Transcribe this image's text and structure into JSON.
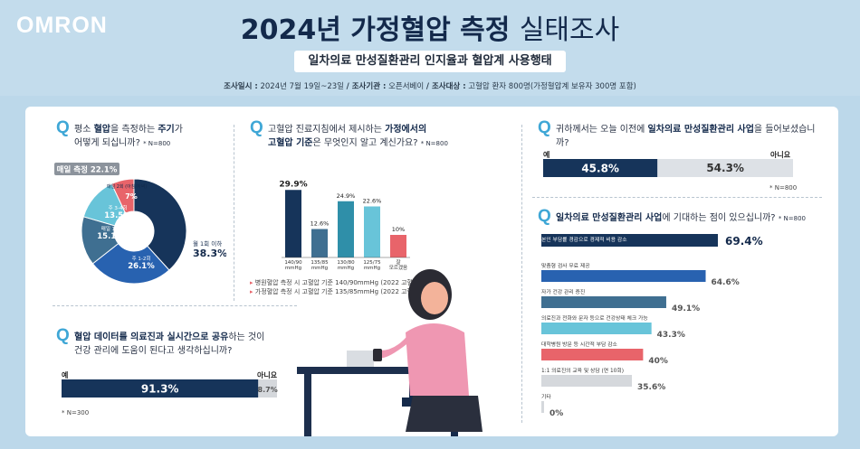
{
  "brand": "OMRON",
  "title": {
    "part1": "2024년 가정혈압 측정",
    "part2": "실태조사"
  },
  "subtitle": "일차의료 만성질환관리 인지율과 혈압계 사용행태",
  "meta": {
    "date_label": "조사일시 :",
    "date": "2024년 7월 19일~23일",
    "org_label": "/ 조사기관 :",
    "org": "오픈서베이",
    "target_label": "/ 조사대상 :",
    "target": "고혈압 환자 800명(가정혈압계 보유자 300명 포함)"
  },
  "q1": {
    "q": "Q",
    "text_a": "평소 ",
    "text_b": "혈압",
    "text_c": "을 측정하는 ",
    "text_d": "주기",
    "text_e": "가",
    "line2": "어떻게 되십니까?",
    "n": "* N=800"
  },
  "q2": {
    "q": "Q",
    "line1a": "고혈압 진료지침에서 제시하는 ",
    "line1b": "가정에서의",
    "line2a": "고혈압 기준",
    "line2b": "은 무엇인지 알고 계신가요?",
    "n": "* N=800",
    "legend1": "병원혈압 측정 시 고혈압 기준 140/90mmHg (2022 고혈압 진료지침)",
    "legend2": "가정혈압 측정 시 고혈압 기준 135/85mmHg (2022 고혈압 진료지침)"
  },
  "q3": {
    "q": "Q",
    "line1a": "혈압 데이터를 의료진과 실시간으로 공유",
    "line1b": "하는 것이",
    "line2": "건강 관리에 도움이 된다고 생각하십니까?",
    "yes": "예",
    "no": "아니요",
    "yes_value": "91.3%",
    "no_value": "8.7%",
    "n": "* N=300"
  },
  "q4": {
    "q": "Q",
    "line1a": "귀하께서는 오늘 이전에 ",
    "line1b": "일차의료 만성질환관리 사업",
    "line1c": "을 들어보셨습니까?",
    "yes": "예",
    "no": "아니요",
    "yes_value": "45.8%",
    "no_value": "54.3%",
    "n": "* N=800"
  },
  "q5": {
    "q": "Q",
    "line1a": "일차의료 만성질환관리 사업",
    "line1b": "에 기대하는 점이 있으십니까?",
    "n": "* N=800"
  },
  "colors": {
    "navy": "#16345a",
    "blue": "#2862b0",
    "mid": "#3f6f91",
    "teal": "#2f8fa9",
    "cyan": "#68c4d9",
    "coral": "#e8646a",
    "grey": "#d5d8dc",
    "light": "#dde1e6"
  },
  "chart_data": [
    {
      "type": "pie",
      "title": "평소 혈압을 측정하는 주기",
      "slices": [
        {
          "label": "월 1회 이하",
          "value": 38.3,
          "color": "#16345a"
        },
        {
          "label": "주 1-2회",
          "value": 26.1,
          "color": "#2862b0"
        },
        {
          "label": "매일 1회",
          "value": 15.1,
          "color": "#3f6f91"
        },
        {
          "label": "주 3-4회",
          "value": 13.5,
          "color": "#68c4d9"
        },
        {
          "label": "매일 2회 (아침/저녁)",
          "value": 7.0,
          "color": "#e8646a"
        }
      ],
      "callout": "매일 측정 22.1%",
      "display": [
        "38.3%",
        "26.1%",
        "15.1%",
        "13.5%",
        "7%"
      ]
    },
    {
      "type": "bar",
      "title": "가정에서의 고혈압 기준",
      "categories": [
        "140/90 mmHg",
        "135/85 mmHg",
        "130/80 mmHg",
        "125/75 mmHg",
        "잘 모르겠음"
      ],
      "values": [
        29.9,
        12.6,
        24.9,
        22.6,
        10
      ],
      "labels": [
        "29.9%",
        "12.6%",
        "24.9%",
        "22.6%",
        "10%"
      ],
      "colors": [
        "#16345a",
        "#3f6f91",
        "#2f8fa9",
        "#68c4d9",
        "#e8646a"
      ]
    },
    {
      "type": "bar",
      "title": "혈압 데이터 의료진 실시간 공유 도움 여부",
      "categories": [
        "예",
        "아니요"
      ],
      "values": [
        91.3,
        8.7
      ]
    },
    {
      "type": "bar",
      "title": "일차의료 만성질환관리 사업 인지 여부",
      "categories": [
        "예",
        "아니요"
      ],
      "values": [
        45.8,
        54.3
      ]
    },
    {
      "type": "bar",
      "title": "일차의료 만성질환관리 사업에 기대하는 점",
      "categories": [
        "본인 부담률 경감으로 경제적 비용 감소",
        "맞춤형 검사 무료 제공",
        "자가 건강 관리 증진",
        "의료진과 전화와 문자 등으로 건강상태 체크 가능",
        "대학병원 방문 등 시간적 부담 감소",
        "1:1 의료진의 교육 및 상담 (연 10회)",
        "기타"
      ],
      "values": [
        69.4,
        64.6,
        49.1,
        43.3,
        40,
        35.6,
        0
      ],
      "labels": [
        "69.4%",
        "64.6%",
        "49.1%",
        "43.3%",
        "40%",
        "35.6%",
        "0%"
      ],
      "colors": [
        "#16345a",
        "#2862b0",
        "#3f6f91",
        "#68c4d9",
        "#e8646a",
        "#d5d8dc",
        "#d5d8dc"
      ]
    }
  ]
}
